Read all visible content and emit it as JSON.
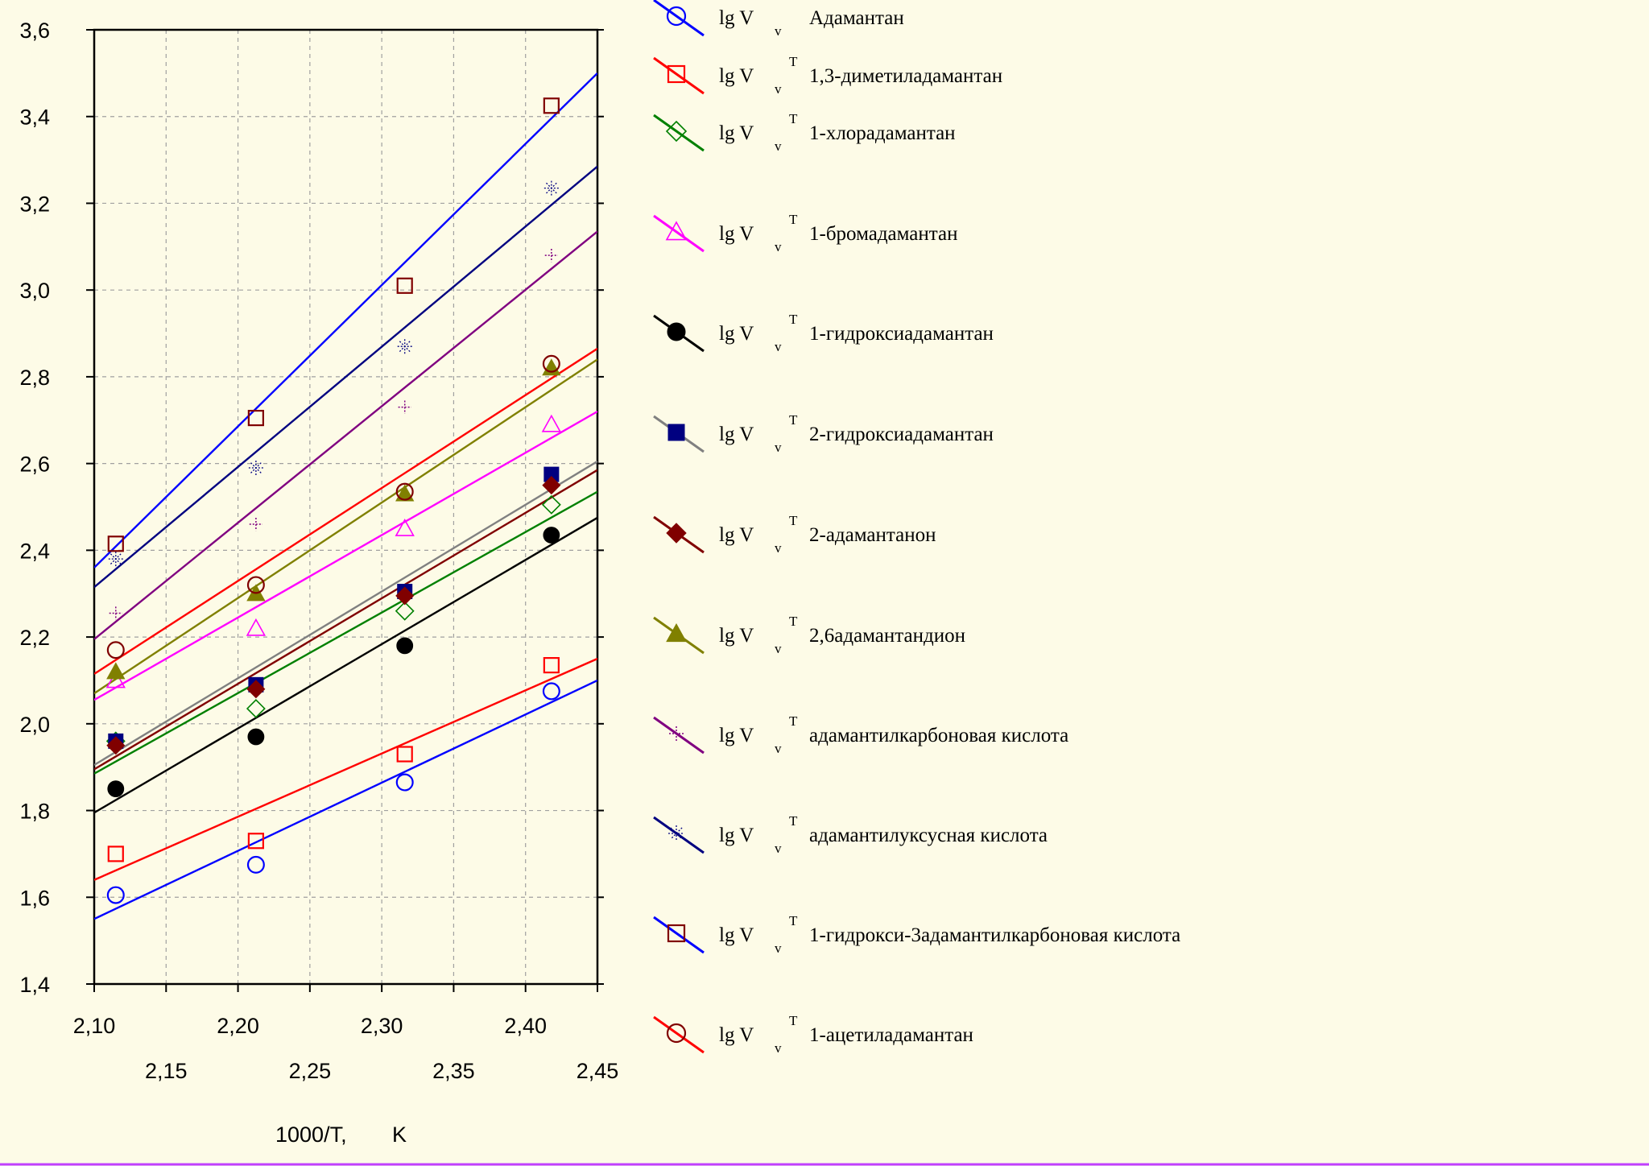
{
  "chart_data": {
    "type": "scatter",
    "xlabel": "1000/T,",
    "xunit": "K",
    "xlim": [
      2.1,
      2.45
    ],
    "ylim": [
      1.4,
      3.6
    ],
    "x_ticks_top": [
      "2,10",
      "2,20",
      "2,30",
      "2,40"
    ],
    "x_ticks_bottom": [
      "2,15",
      "2,25",
      "2,35",
      "2,45"
    ],
    "y_ticks": [
      "1,4",
      "1,6",
      "1,8",
      "2,0",
      "2,2",
      "2,4",
      "2,6",
      "2,8",
      "3,0",
      "3,2",
      "3,4",
      "3,6"
    ],
    "x": [
      2.115,
      2.2125,
      2.316,
      2.418
    ],
    "series": [
      {
        "name": "Адамантан",
        "legend_label": "lg V",
        "legend_sub": "v",
        "legend_sup": "",
        "color": "#0000ff",
        "marker": "circle-open",
        "values": [
          1.605,
          1.675,
          1.865,
          2.075
        ],
        "fit": [
          1.55,
          2.1
        ]
      },
      {
        "name": "1,3-диметиладамантан",
        "legend_label": "lg V",
        "legend_sub": "v",
        "legend_sup": "T",
        "color": "#ff0000",
        "marker": "square-open",
        "values": [
          1.7,
          1.73,
          1.93,
          2.135
        ],
        "fit": [
          1.64,
          2.15
        ]
      },
      {
        "name": "1-хлорадамантан",
        "legend_label": "lg V",
        "legend_sub": "v",
        "legend_sup": "T",
        "color": "#008000",
        "marker": "diamond-open",
        "values": [
          1.96,
          2.035,
          2.26,
          2.505
        ],
        "fit": [
          1.885,
          2.535
        ]
      },
      {
        "name": "1-бромадамантан",
        "legend_label": "lg V",
        "legend_sub": "v",
        "legend_sup": "T",
        "color": "#ff00ff",
        "marker": "triangle-open",
        "values": [
          2.1,
          2.22,
          2.45,
          2.69
        ],
        "fit": [
          2.055,
          2.72
        ]
      },
      {
        "name": "1-гидроксиадамантан",
        "legend_label": "lg V",
        "legend_sub": "v",
        "legend_sup": "T",
        "color": "#000000",
        "marker": "circle-filled",
        "values": [
          1.85,
          1.97,
          2.18,
          2.435
        ],
        "fit": [
          1.795,
          2.475
        ]
      },
      {
        "name": "2-гидроксиадамантан",
        "legend_label": "lg V",
        "legend_sub": "v",
        "legend_sup": "T",
        "color": "#808080",
        "marker": "square-filled",
        "markerColor": "#000080",
        "values": [
          1.96,
          2.09,
          2.305,
          2.575
        ],
        "fit": [
          1.905,
          2.605
        ]
      },
      {
        "name": "2-адамантанон",
        "legend_label": "lg V",
        "legend_sub": "v",
        "legend_sup": "T",
        "color": "#800000",
        "marker": "diamond-filled",
        "values": [
          1.95,
          2.08,
          2.295,
          2.55
        ],
        "fit": [
          1.895,
          2.585
        ]
      },
      {
        "name": "2,6адамантандион",
        "legend_label": "lg V",
        "legend_sub": "v",
        "legend_sup": "T",
        "color": "#808000",
        "marker": "triangle-filled",
        "values": [
          2.12,
          2.3,
          2.53,
          2.82
        ],
        "fit": [
          2.07,
          2.84
        ]
      },
      {
        "name": "адамантилкарбоновая кислота",
        "legend_label": "lg V",
        "legend_sub": "v",
        "legend_sup": "T",
        "color": "#800080",
        "marker": "cross",
        "values": [
          2.255,
          2.46,
          2.73,
          3.08
        ],
        "fit": [
          2.195,
          3.135
        ]
      },
      {
        "name": "адамантилуксусная кислота",
        "legend_label": "lg V",
        "legend_sub": "v",
        "legend_sup": "T",
        "color": "#000080",
        "marker": "star",
        "values": [
          2.38,
          2.59,
          2.87,
          3.235
        ],
        "fit": [
          2.315,
          3.285
        ]
      },
      {
        "name": "1-гидрокси-3адамантилкарбоновая кислота",
        "legend_label": "lg V",
        "legend_sub": "v",
        "legend_sup": "T",
        "color": "#0000ff",
        "marker": "square-open",
        "markerColor": "#800000",
        "values": [
          2.415,
          2.705,
          3.01,
          3.425
        ],
        "fit": [
          2.36,
          3.5
        ]
      },
      {
        "name": "1-ацетиладамантан",
        "legend_label": "lg V",
        "legend_sub": "v",
        "legend_sup": "T",
        "color": "#ff0000",
        "marker": "circle-open",
        "markerColor": "#800000",
        "values": [
          2.17,
          2.32,
          2.535,
          2.83
        ],
        "fit": [
          2.115,
          2.865
        ]
      }
    ]
  }
}
